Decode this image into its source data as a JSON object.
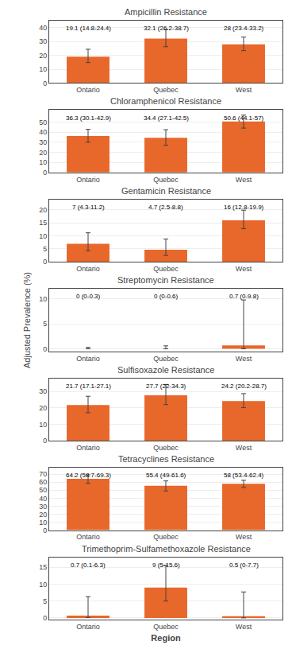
{
  "chart_data": [
    {
      "type": "bar",
      "title": "Ampicillin Resistance",
      "categories": [
        "Ontario",
        "Quebec",
        "West"
      ],
      "values": [
        19.1,
        32.1,
        28.0
      ],
      "ci_low": [
        14.8,
        26.2,
        23.4
      ],
      "ci_high": [
        24.4,
        38.7,
        33.2
      ],
      "value_labels": [
        "19.1 (14.8-24.4)",
        "32.1 (26.2-38.7)",
        "28 (23.4-33.2)"
      ],
      "data_labels": true,
      "color": "#E8672A",
      "ylim": [
        0,
        45
      ],
      "yticks": [
        0,
        10,
        20,
        30,
        40
      ],
      "grid": true
    },
    {
      "type": "bar",
      "title": "Chloramphenicol Resistance",
      "categories": [
        "Ontario",
        "Quebec",
        "West"
      ],
      "values": [
        36.3,
        34.4,
        50.6
      ],
      "ci_low": [
        30.1,
        27.1,
        44.1
      ],
      "ci_high": [
        42.9,
        42.5,
        57.0
      ],
      "value_labels": [
        "36.3 (30.1-42.9)",
        "34.4 (27.1-42.5)",
        "50.6 (44.1-57)"
      ],
      "data_labels": true,
      "color": "#E8672A",
      "ylim": [
        0,
        62
      ],
      "yticks": [
        0,
        10,
        20,
        30,
        40,
        50
      ],
      "grid": true
    },
    {
      "type": "bar",
      "title": "Gentamicin Resistance",
      "categories": [
        "Ontario",
        "Quebec",
        "West"
      ],
      "values": [
        7.0,
        4.7,
        16.0
      ],
      "ci_low": [
        4.3,
        2.5,
        12.8
      ],
      "ci_high": [
        11.2,
        8.8,
        19.9
      ],
      "value_labels": [
        "7 (4.3-11.2)",
        "4.7 (2.5-8.8)",
        "16 (12.8-19.9)"
      ],
      "data_labels": true,
      "color": "#E8672A",
      "ylim": [
        0,
        24
      ],
      "yticks": [
        0,
        5,
        10,
        15,
        20
      ],
      "grid": true
    },
    {
      "type": "bar",
      "title": "Streptomycin Resistance",
      "categories": [
        "Ontario",
        "Quebec",
        "West"
      ],
      "values": [
        0.0,
        0.0,
        0.7
      ],
      "ci_low": [
        0.0,
        0.0,
        0.0
      ],
      "ci_high": [
        0.3,
        0.6,
        9.8
      ],
      "value_labels": [
        "0 (0-0.3)",
        "0 (0-0.6)",
        "0.7 (0-9.8)"
      ],
      "data_labels": true,
      "color": "#E8672A",
      "ylim": [
        -0.5,
        12
      ],
      "yticks": [
        0,
        5,
        10
      ],
      "grid": true,
      "ylabel": "Adjusted Prevalence (%)"
    },
    {
      "type": "bar",
      "title": "Sulfisoxazole Resistance",
      "categories": [
        "Ontario",
        "Quebec",
        "West"
      ],
      "values": [
        21.7,
        27.7,
        24.2
      ],
      "ci_low": [
        17.1,
        22.0,
        20.2
      ],
      "ci_high": [
        27.1,
        34.3,
        28.7
      ],
      "value_labels": [
        "21.7 (17.1-27.1)",
        "27.7 (22-34.3)",
        "24.2 (20.2-28.7)"
      ],
      "data_labels": true,
      "color": "#E8672A",
      "ylim": [
        0,
        38
      ],
      "yticks": [
        0,
        10,
        20,
        30
      ],
      "grid": true
    },
    {
      "type": "bar",
      "title": "Tetracyclines Resistance",
      "categories": [
        "Ontario",
        "Quebec",
        "West"
      ],
      "values": [
        64.2,
        55.4,
        58.0
      ],
      "ci_low": [
        58.7,
        49.0,
        53.4
      ],
      "ci_high": [
        69.3,
        61.6,
        62.4
      ],
      "value_labels": [
        "64.2 (58.7-69.3)",
        "55.4 (49-61.6)",
        "58 (53.4-62.4)"
      ],
      "data_labels": true,
      "color": "#E8672A",
      "ylim": [
        0,
        78
      ],
      "yticks": [
        0,
        10,
        20,
        30,
        40,
        50,
        60,
        70
      ],
      "grid": true
    },
    {
      "type": "bar",
      "title": "Trimethoprim-Sulfamethoxazole Resistance",
      "categories": [
        "Ontario",
        "Quebec",
        "West"
      ],
      "values": [
        0.7,
        9.0,
        0.5
      ],
      "ci_low": [
        0.1,
        5.0,
        0.0
      ],
      "ci_high": [
        6.3,
        15.6,
        7.7
      ],
      "value_labels": [
        "0.7 (0.1-6.3)",
        "9 (5-15.6)",
        "0.5 (0-7.7)"
      ],
      "data_labels": true,
      "color": "#E8672A",
      "ylim": [
        -0.5,
        18
      ],
      "yticks": [
        0,
        5,
        10,
        15
      ],
      "grid": true,
      "xlabel": "Region"
    }
  ]
}
